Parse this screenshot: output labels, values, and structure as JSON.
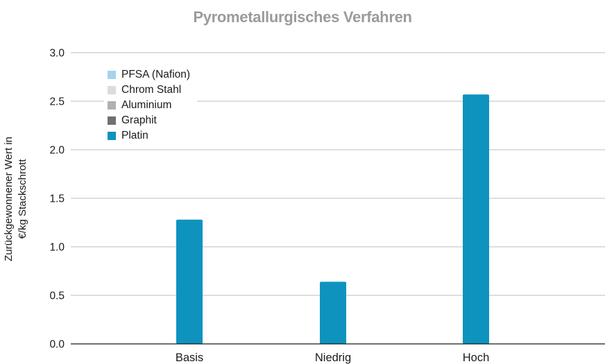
{
  "chart_data": {
    "type": "bar",
    "title": "Pyrometallurgisches Verfahren",
    "ylabel_lines": [
      "Zurückgewonnener Wert in",
      "€/kg Stackschrott"
    ],
    "categories": [
      "Basis",
      "Niedrig",
      "Hoch"
    ],
    "ylim": [
      0,
      3.0
    ],
    "yticks": [
      0.0,
      0.5,
      1.0,
      1.5,
      2.0,
      2.5,
      3.0
    ],
    "ytick_labels": [
      "0.0",
      "0.5",
      "1.0",
      "1.5",
      "2.0",
      "2.5",
      "3.0"
    ],
    "grid": true,
    "legend_position": "top-left",
    "series": [
      {
        "name": "PFSA (Nafion)",
        "color": "#a6d3ea",
        "values": [
          0,
          0,
          0
        ]
      },
      {
        "name": "Chrom Stahl",
        "color": "#dcdcdc",
        "values": [
          0,
          0,
          0
        ]
      },
      {
        "name": "Aluminium",
        "color": "#b0b0b0",
        "values": [
          0,
          0,
          0
        ]
      },
      {
        "name": "Graphit",
        "color": "#707070",
        "values": [
          0,
          0,
          0
        ]
      },
      {
        "name": "Platin",
        "color": "#0e93bf",
        "values": [
          1.28,
          0.64,
          2.57
        ]
      }
    ]
  }
}
